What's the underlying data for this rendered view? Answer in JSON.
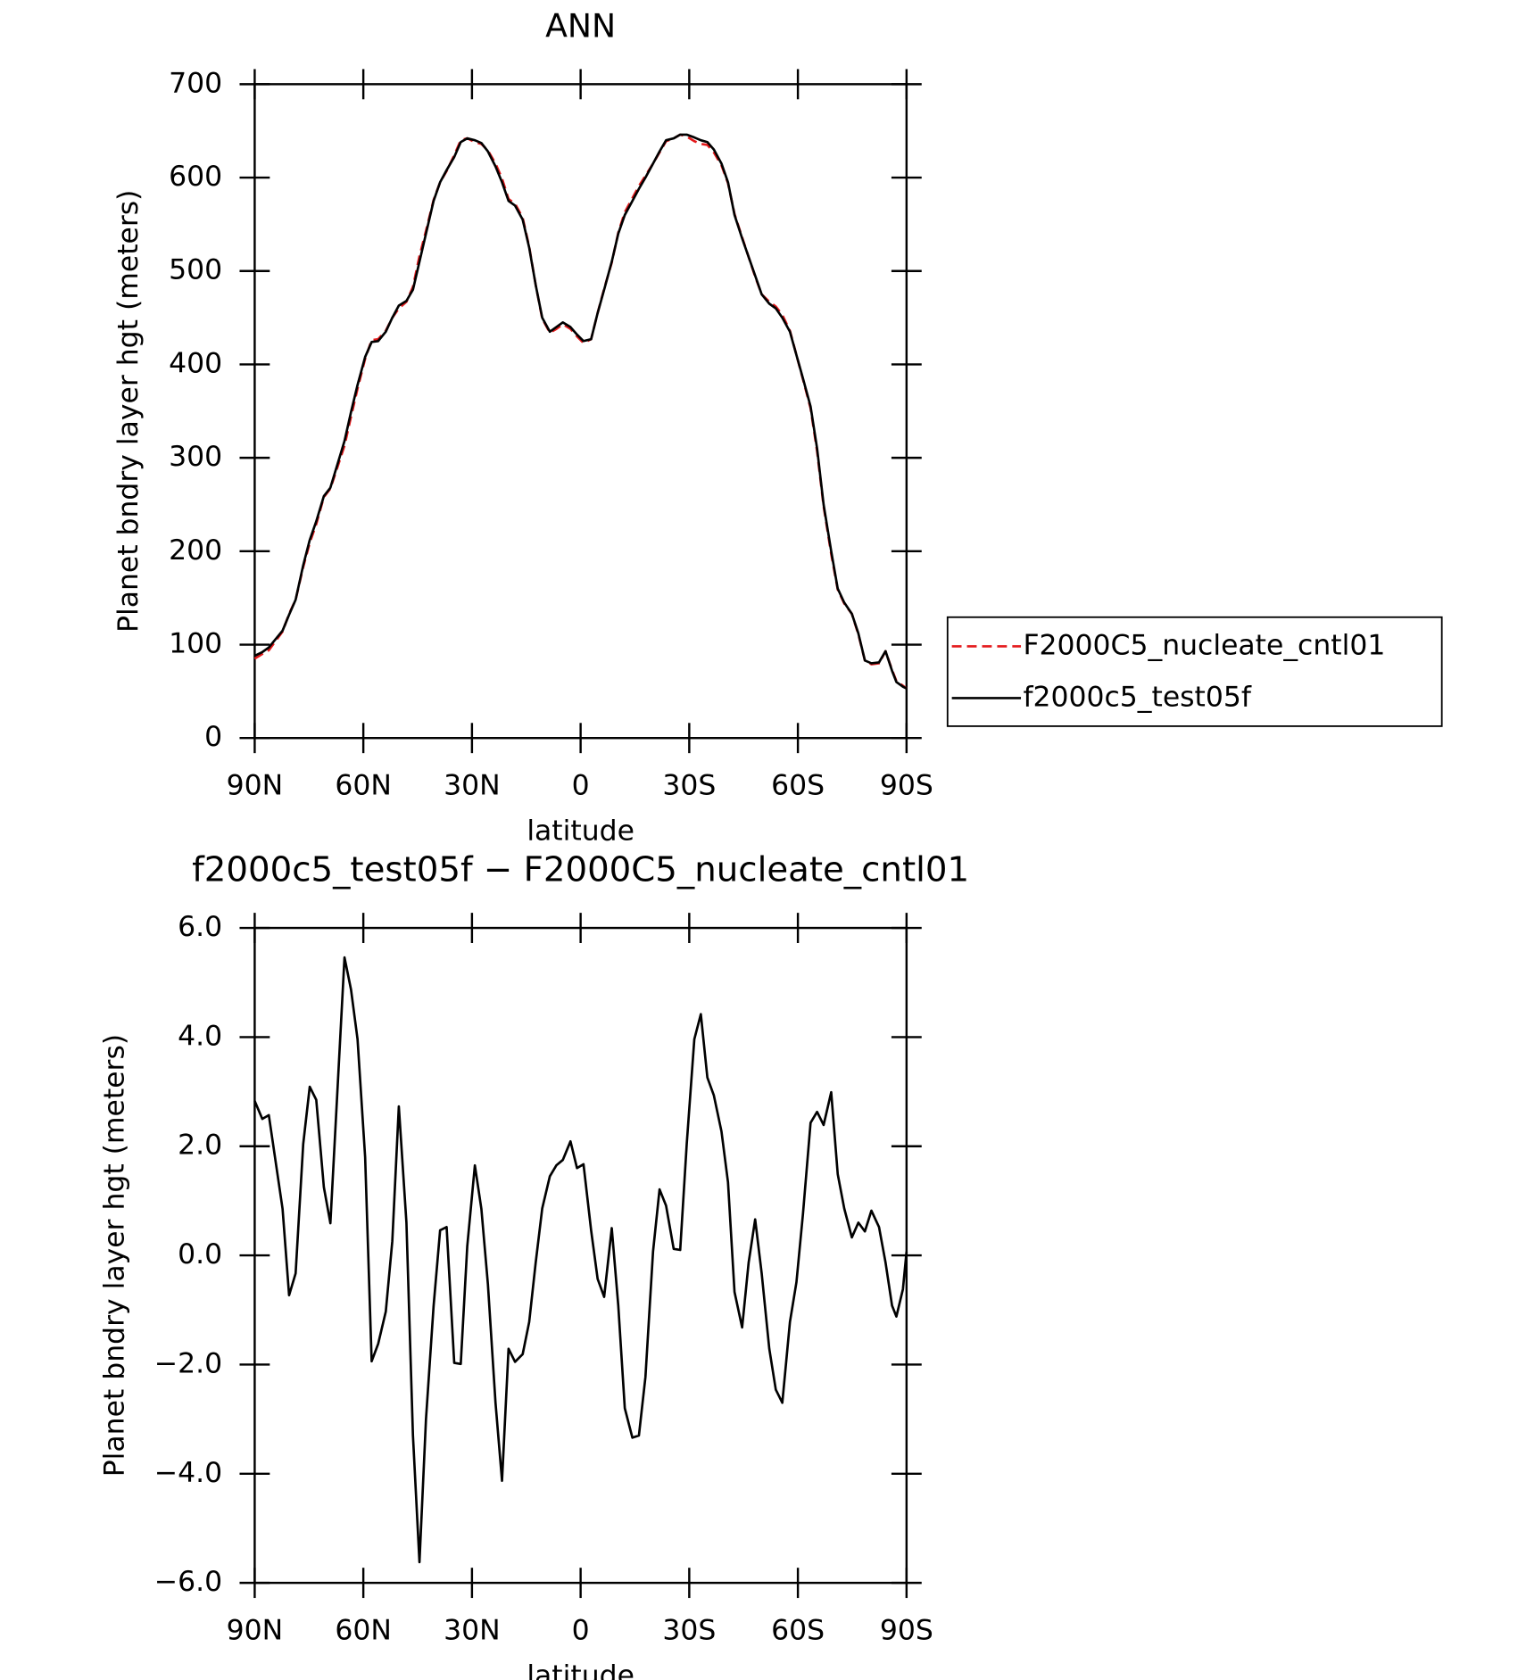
{
  "chart_data": [
    {
      "type": "line",
      "title": "ANN",
      "xlabel": "latitude",
      "ylabel": "Planet bndry layer hgt (meters)",
      "legend": "right",
      "x": [
        90,
        87.9,
        86.1,
        82.3,
        80.5,
        78.7,
        76.6,
        74.8,
        73.0,
        70.9,
        69.1,
        65.2,
        63.4,
        61.6,
        59.5,
        57.7,
        55.9,
        53.8,
        52.0,
        50.2,
        48.1,
        46.3,
        44.5,
        42.7,
        40.6,
        38.8,
        37.0,
        34.9,
        33.1,
        31.3,
        29.2,
        27.4,
        25.6,
        23.5,
        21.7,
        19.9,
        18.1,
        16.0,
        14.2,
        12.4,
        10.6,
        8.5,
        6.7,
        4.9,
        2.8,
        1.0,
        -0.8,
        -2.9,
        -4.7,
        -6.5,
        -8.6,
        -10.4,
        -12.2,
        -14.3,
        -16.1,
        -17.9,
        -20.0,
        -21.8,
        -23.6,
        -25.7,
        -27.5,
        -29.3,
        -31.4,
        -33.2,
        -35.0,
        -36.8,
        -38.9,
        -40.7,
        -42.5,
        -44.6,
        -46.4,
        -48.2,
        -50.0,
        -52.1,
        -53.9,
        -55.7,
        -57.8,
        -59.6,
        -61.4,
        -63.5,
        -65.3,
        -67.1,
        -69.2,
        -71.0,
        -72.8,
        -74.9,
        -76.7,
        -78.5,
        -80.3,
        -82.4,
        -84.2,
        -86.0,
        -87.2,
        -89.0,
        -90
      ],
      "xlim": [
        90,
        -90
      ],
      "xticks": [
        {
          "value": 90,
          "label": "90N"
        },
        {
          "value": 60,
          "label": "60N"
        },
        {
          "value": 30,
          "label": "30N"
        },
        0,
        {
          "value": -30,
          "label": "30S"
        },
        {
          "value": -60,
          "label": "60S"
        },
        {
          "value": -90,
          "label": "90S"
        }
      ],
      "ylim": [
        0,
        700
      ],
      "yticks": [
        0,
        100,
        200,
        300,
        400,
        500,
        600,
        700
      ],
      "series": [
        {
          "name": "F2000C5_nucleate_cntl01",
          "color": "#e41a1c",
          "linestyle": "dashed",
          "values": [
            85,
            90,
            94,
            114,
            133,
            148,
            183,
            209,
            229,
            258,
            267,
            313,
            344,
            374,
            406,
            426,
            427,
            436,
            450,
            460,
            467,
            483,
            516,
            543,
            576,
            595,
            607,
            624,
            640,
            642,
            638,
            636,
            629,
            615,
            599,
            577,
            572,
            557,
            526,
            485,
            449,
            434,
            438,
            443,
            438,
            430,
            423,
            427,
            455,
            481,
            509,
            541,
            563,
            578,
            591,
            602,
            615,
            627,
            639,
            642,
            646,
            644,
            639,
            636,
            635,
            627,
            613,
            594,
            561,
            536,
            515,
            494,
            475,
            467,
            462,
            453,
            436,
            410,
            384,
            353,
            307,
            248,
            197,
            159,
            144,
            133,
            111,
            83,
            79,
            80,
            93,
            73,
            61,
            56,
            53
          ]
        },
        {
          "name": "f2000c5_test05f",
          "color": "#000000",
          "linestyle": "solid",
          "values": [
            88,
            92,
            97,
            115,
            132,
            148,
            185,
            212,
            232,
            259,
            268,
            318,
            349,
            378,
            408,
            424,
            425,
            435,
            450,
            463,
            468,
            480,
            510,
            540,
            575,
            595,
            608,
            622,
            638,
            642,
            640,
            637,
            628,
            612,
            595,
            575,
            570,
            555,
            525,
            485,
            450,
            435,
            440,
            445,
            440,
            432,
            425,
            427,
            455,
            480,
            510,
            540,
            560,
            575,
            588,
            600,
            615,
            628,
            640,
            642,
            646,
            646,
            643,
            640,
            638,
            630,
            615,
            595,
            560,
            535,
            515,
            495,
            475,
            465,
            460,
            450,
            435,
            410,
            385,
            355,
            310,
            250,
            200,
            160,
            145,
            133,
            112,
            83,
            80,
            81,
            93,
            72,
            60,
            55,
            53
          ]
        }
      ]
    },
    {
      "type": "line",
      "title": "f2000c5_test05f − F2000C5_nucleate_cntl01",
      "xlabel": "latitude",
      "ylabel": "Planet bndry layer hgt (meters)",
      "x": [
        90,
        87.9,
        86.1,
        82.3,
        80.5,
        78.7,
        76.6,
        74.8,
        73.0,
        70.9,
        69.1,
        65.2,
        63.4,
        61.6,
        59.5,
        57.7,
        55.9,
        53.8,
        52.0,
        50.2,
        48.1,
        46.3,
        44.5,
        42.7,
        40.6,
        38.8,
        37.0,
        34.9,
        33.1,
        31.3,
        29.2,
        27.4,
        25.6,
        23.5,
        21.7,
        19.9,
        18.1,
        16.0,
        14.2,
        12.4,
        10.6,
        8.5,
        6.7,
        4.9,
        2.8,
        1.0,
        -0.8,
        -2.9,
        -4.7,
        -6.5,
        -8.6,
        -10.4,
        -12.2,
        -14.3,
        -16.1,
        -17.9,
        -20.0,
        -21.8,
        -23.6,
        -25.7,
        -27.5,
        -29.3,
        -31.4,
        -33.2,
        -35.0,
        -36.8,
        -38.9,
        -40.7,
        -42.5,
        -44.6,
        -46.4,
        -48.2,
        -50.0,
        -52.1,
        -53.9,
        -55.7,
        -57.8,
        -59.6,
        -61.4,
        -63.5,
        -65.3,
        -67.1,
        -69.2,
        -71.0,
        -72.8,
        -74.9,
        -76.7,
        -78.5,
        -80.3,
        -82.4,
        -84.2,
        -86.0,
        -87.2,
        -89.0,
        -90
      ],
      "xlim": [
        90,
        -90
      ],
      "xticks": [
        {
          "value": 90,
          "label": "90N"
        },
        {
          "value": 60,
          "label": "60N"
        },
        {
          "value": 30,
          "label": "30N"
        },
        0,
        {
          "value": -30,
          "label": "30S"
        },
        {
          "value": -60,
          "label": "60S"
        },
        {
          "value": -90,
          "label": "90S"
        }
      ],
      "ylim": [
        -6,
        6
      ],
      "yticks": [
        {
          "value": 6,
          "label": "6.0"
        },
        {
          "value": 4,
          "label": "4.0"
        },
        {
          "value": 2,
          "label": "2.0"
        },
        {
          "value": 0,
          "label": "0.0"
        },
        {
          "value": -2,
          "label": "−2.0"
        },
        {
          "value": -4,
          "label": "−4.0"
        },
        {
          "value": -6,
          "label": "−6.0"
        }
      ],
      "color": "#000000",
      "values": [
        2.83,
        2.5,
        2.57,
        0.85,
        -0.73,
        -0.33,
        2.04,
        3.09,
        2.85,
        1.25,
        0.59,
        5.46,
        4.87,
        3.96,
        1.8,
        -1.94,
        -1.62,
        -1.03,
        0.26,
        2.73,
        0.6,
        -3.3,
        -5.62,
        -3.0,
        -0.93,
        0.46,
        0.52,
        -1.97,
        -1.99,
        0.17,
        1.65,
        0.85,
        -0.53,
        -2.7,
        -4.13,
        -1.71,
        -1.95,
        -1.81,
        -1.22,
        -0.13,
        0.86,
        1.45,
        1.65,
        1.75,
        2.09,
        1.6,
        1.67,
        0.46,
        -0.43,
        -0.76,
        0.5,
        -0.92,
        -2.8,
        -3.34,
        -3.3,
        -2.23,
        0.07,
        1.21,
        0.91,
        0.12,
        0.1,
        2.04,
        3.96,
        4.42,
        3.26,
        2.93,
        2.27,
        1.34,
        -0.67,
        -1.32,
        -0.13,
        0.66,
        -0.33,
        -1.71,
        -2.46,
        -2.7,
        -1.22,
        -0.49,
        0.76,
        2.43,
        2.63,
        2.39,
        2.99,
        1.49,
        0.86,
        0.33,
        0.6,
        0.44,
        0.82,
        0.52,
        -0.13,
        -0.92,
        -1.12,
        -0.62,
        0.07
      ]
    }
  ]
}
